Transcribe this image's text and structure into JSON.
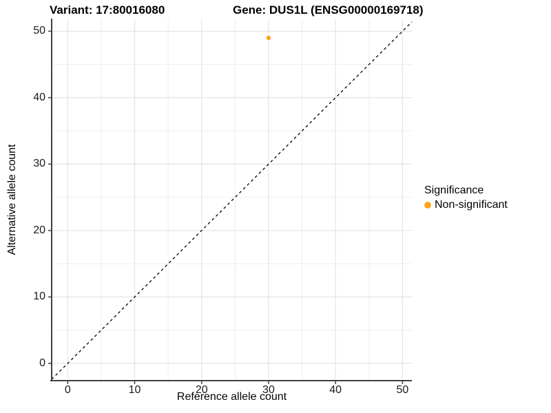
{
  "titles": {
    "variant": "Variant: 17:80016080",
    "gene": "Gene: DUS1L (ENSG00000169718)"
  },
  "chart_data": {
    "type": "scatter",
    "title": "Variant: 17:80016080   Gene: DUS1L (ENSG00000169718)",
    "xlabel": "Reference allele count",
    "ylabel": "Alternative allele count",
    "xlim": [
      -2.4,
      51.4
    ],
    "ylim": [
      -2.6,
      51.8
    ],
    "xticks": [
      0,
      10,
      20,
      30,
      40,
      50
    ],
    "yticks": [
      0,
      10,
      20,
      30,
      40,
      50
    ],
    "grid": "on",
    "grid_step": 5,
    "points": [
      {
        "x": 30,
        "y": 49,
        "series": "Non-significant"
      }
    ],
    "identity_line": {
      "equation": "y = x",
      "style": "dashed"
    },
    "legend": {
      "title": "Significance",
      "position": "right",
      "items": [
        {
          "label": "Non-significant",
          "color": "#FFA320"
        }
      ]
    }
  },
  "colors": {
    "point": "#FFA320",
    "grid_major": "#E4E4E4",
    "grid_minor": "#EDEDED",
    "axis": "#404040",
    "tick_text": "#1a1a1a",
    "dashed_line": "#111111"
  }
}
